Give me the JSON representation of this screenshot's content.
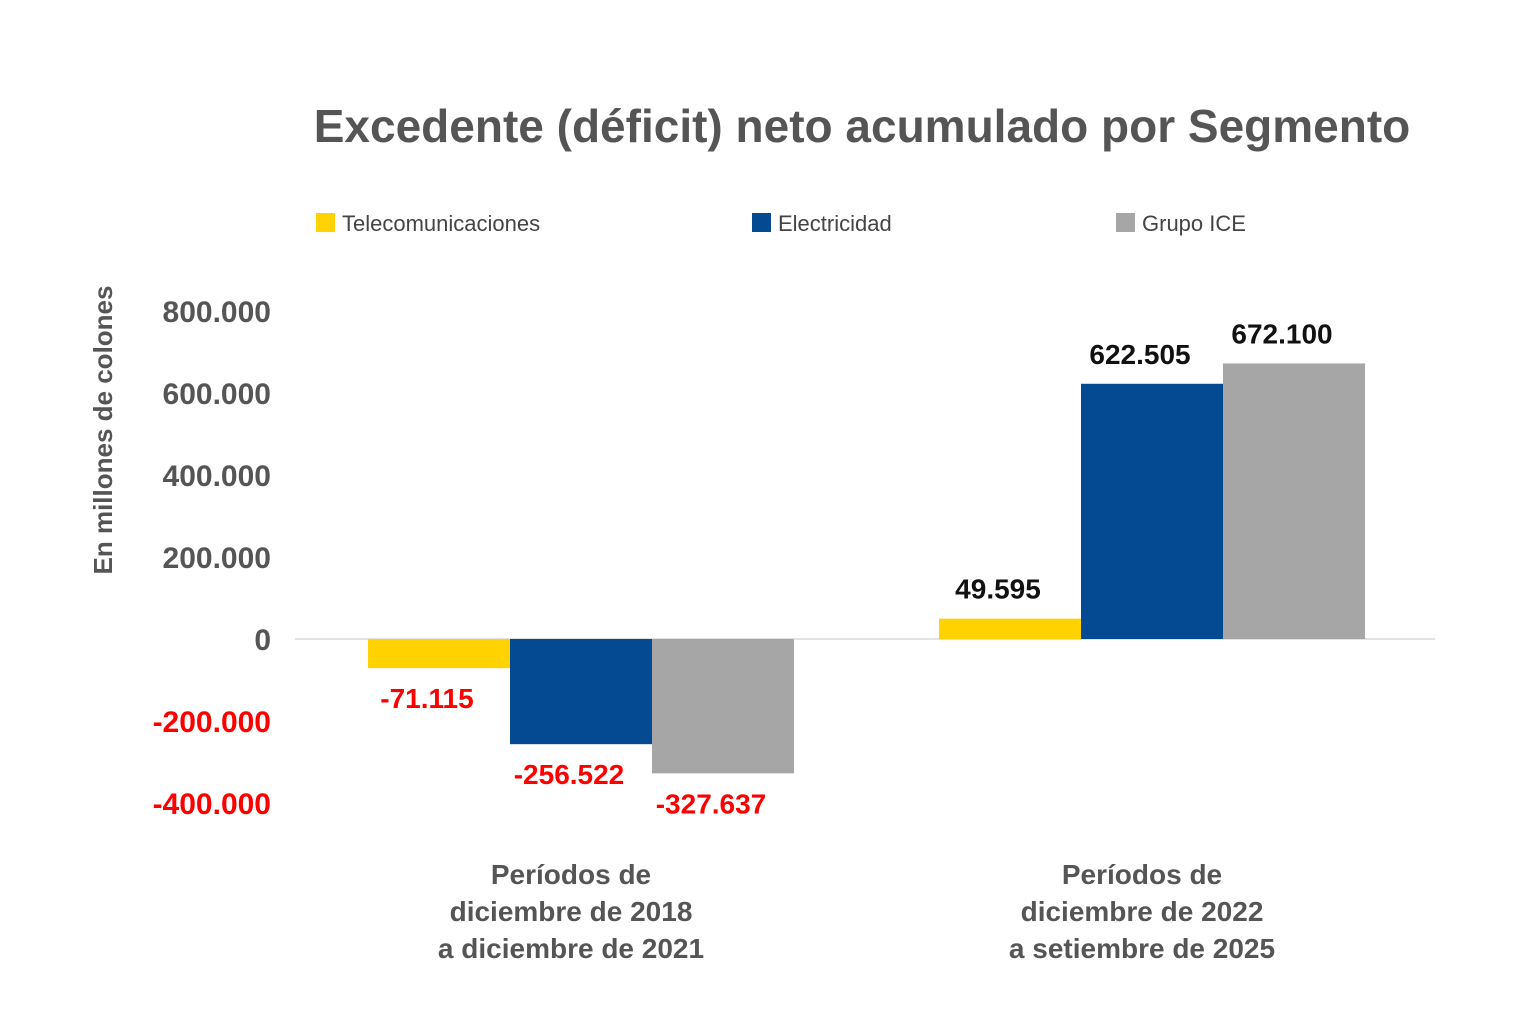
{
  "chart_data": {
    "type": "bar",
    "title": "Excedente (déficit) neto acumulado por Segmento",
    "xlabel": "",
    "ylabel": "En millones de colones",
    "ylim": [
      -400000,
      800000
    ],
    "yticks": [
      800000,
      600000,
      400000,
      200000,
      0,
      -200000,
      -400000
    ],
    "ytick_labels": [
      "800.000",
      "600.000",
      "400.000",
      "200.000",
      "0",
      "-200.000",
      "-400.000"
    ],
    "grid": false,
    "legend_position": "top",
    "categories": [
      [
        "Períodos de",
        "diciembre de 2018",
        "a diciembre de 2021"
      ],
      [
        "Períodos de",
        "diciembre de 2022",
        "a setiembre de 2025"
      ]
    ],
    "series": [
      {
        "name": "Telecomunicaciones",
        "color": "#FFD200",
        "values": [
          -71115,
          49595
        ],
        "labels": [
          "-71.115",
          "49.595"
        ]
      },
      {
        "name": "Electricidad",
        "color": "#034A92",
        "values": [
          -256522,
          622505
        ],
        "labels": [
          "-256.522",
          "622.505"
        ]
      },
      {
        "name": "Grupo ICE",
        "color": "#A6A6A6",
        "values": [
          -327637,
          672100
        ],
        "labels": [
          "-327.637",
          "672.100"
        ]
      }
    ],
    "colors": {
      "positive_label": "#111111",
      "negative_label": "#FF0000",
      "positive_tick": "#555555",
      "negative_tick": "#FF0000",
      "zero_line": "#D9D9D9"
    }
  }
}
